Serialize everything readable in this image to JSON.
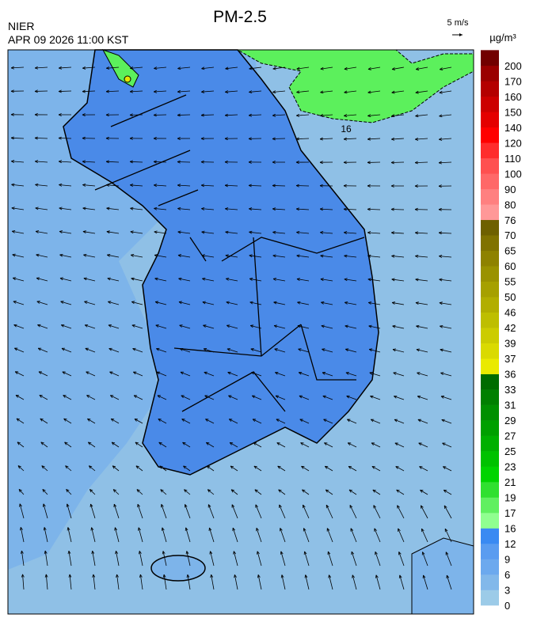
{
  "header": {
    "title": "PM-2.5",
    "source": "NIER",
    "timestamp": "APR 09 2026 11:00 KST"
  },
  "wind_scale": {
    "label": "5 m/s"
  },
  "map": {
    "contour_label": "16"
  },
  "colorbar": {
    "unit": "µg/m³",
    "ticks": [
      0,
      3,
      6,
      9,
      12,
      16,
      17,
      19,
      21,
      23,
      25,
      27,
      29,
      31,
      33,
      36,
      37,
      39,
      42,
      46,
      50,
      55,
      60,
      65,
      70,
      76,
      80,
      90,
      100,
      110,
      120,
      140,
      150,
      160,
      170,
      200
    ],
    "colors": [
      "#9ccbe8",
      "#82b8ea",
      "#6ca9ee",
      "#5a9cf0",
      "#3a8af2",
      "#90ff90",
      "#60f060",
      "#30e030",
      "#00d400",
      "#00c200",
      "#00b000",
      "#00a000",
      "#009000",
      "#008000",
      "#006c00",
      "#eaea00",
      "#dada00",
      "#cccc00",
      "#bebe00",
      "#b2ae00",
      "#a6a000",
      "#9a9200",
      "#8e8200",
      "#807200",
      "#6e6000",
      "#ff9898",
      "#ff8080",
      "#ff6868",
      "#ff5050",
      "#ff2c2c",
      "#ff0000",
      "#e40000",
      "#cc0000",
      "#b40000",
      "#9a0000",
      "#720000"
    ]
  }
}
